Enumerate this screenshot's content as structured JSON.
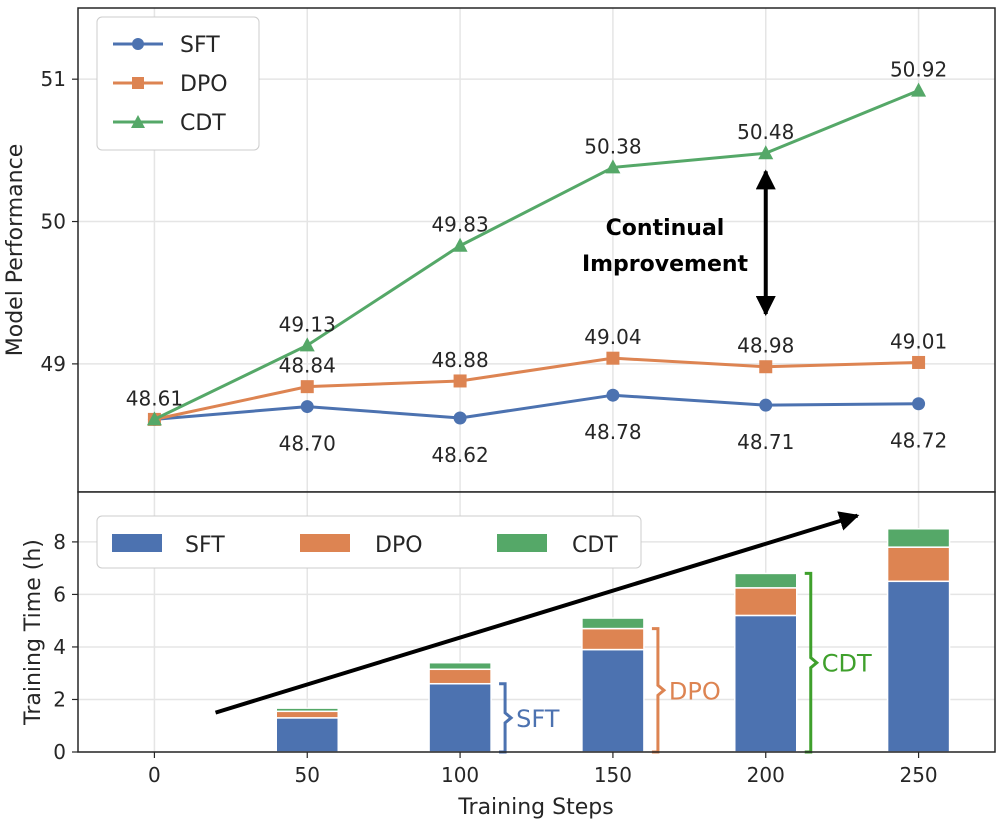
{
  "colors": {
    "SFT": "#4c72b0",
    "DPO": "#dd8452",
    "CDT": "#55a868",
    "CDT_brace": "#3fa02c",
    "grid": "#e5e5e5",
    "frame": "#262626"
  },
  "chart_data": [
    {
      "type": "line",
      "ylabel": "Model Performance",
      "x": [
        0,
        50,
        100,
        150,
        200,
        250
      ],
      "xlim": [
        -25,
        275
      ],
      "ylim": [
        48.1,
        51.5
      ],
      "yticks": [
        49,
        50,
        51
      ],
      "series": [
        {
          "name": "SFT",
          "marker": "circle",
          "values": [
            48.61,
            48.7,
            48.62,
            48.78,
            48.71,
            48.72
          ],
          "labels": [
            "48.61",
            "48.70",
            "48.62",
            "48.78",
            "48.71",
            "48.72"
          ]
        },
        {
          "name": "DPO",
          "marker": "square",
          "values": [
            48.61,
            48.84,
            48.88,
            49.04,
            48.98,
            49.01
          ],
          "labels": [
            "48.61",
            "48.84",
            "48.88",
            "49.04",
            "48.98",
            "49.01"
          ]
        },
        {
          "name": "CDT",
          "marker": "triangle",
          "values": [
            48.61,
            49.13,
            49.83,
            50.38,
            50.48,
            50.92
          ],
          "labels": [
            "48.61",
            "49.13",
            "49.83",
            "50.38",
            "50.48",
            "50.92"
          ]
        }
      ],
      "legend": {
        "position": "top-left",
        "entries": [
          "SFT",
          "DPO",
          "CDT"
        ]
      },
      "annotation": {
        "line1": "Continual",
        "line2": "Improvement",
        "from_y": 50.38,
        "to_y": 49.35,
        "x": 200
      }
    },
    {
      "type": "stacked-bar",
      "xlabel": "Training Steps",
      "ylabel": "Training Time (h)",
      "x": [
        0,
        50,
        100,
        150,
        200,
        250
      ],
      "xticks": [
        "0",
        "50",
        "100",
        "150",
        "200",
        "250"
      ],
      "ylim": [
        0,
        9.9
      ],
      "yticks": [
        0,
        2,
        4,
        6,
        8
      ],
      "series": [
        {
          "name": "SFT",
          "values": [
            0,
            1.3,
            2.6,
            3.9,
            5.2,
            6.5
          ]
        },
        {
          "name": "DPO",
          "values": [
            0,
            0.25,
            0.55,
            0.8,
            1.05,
            1.3
          ]
        },
        {
          "name": "CDT",
          "values": [
            0,
            0.12,
            0.25,
            0.4,
            0.55,
            0.7
          ]
        }
      ],
      "legend": {
        "position": "top",
        "entries": [
          "SFT",
          "DPO",
          "CDT"
        ]
      },
      "trend_arrow": {
        "from": [
          20,
          1.5
        ],
        "to": [
          230,
          9.0
        ]
      },
      "braces": [
        {
          "label": "SFT",
          "x": 100,
          "y0": 0,
          "y1": 2.6
        },
        {
          "label": "DPO",
          "x": 150,
          "y0": 0,
          "y1": 4.7
        },
        {
          "label": "CDT",
          "x": 200,
          "y0": 0,
          "y1": 6.8
        }
      ]
    }
  ]
}
